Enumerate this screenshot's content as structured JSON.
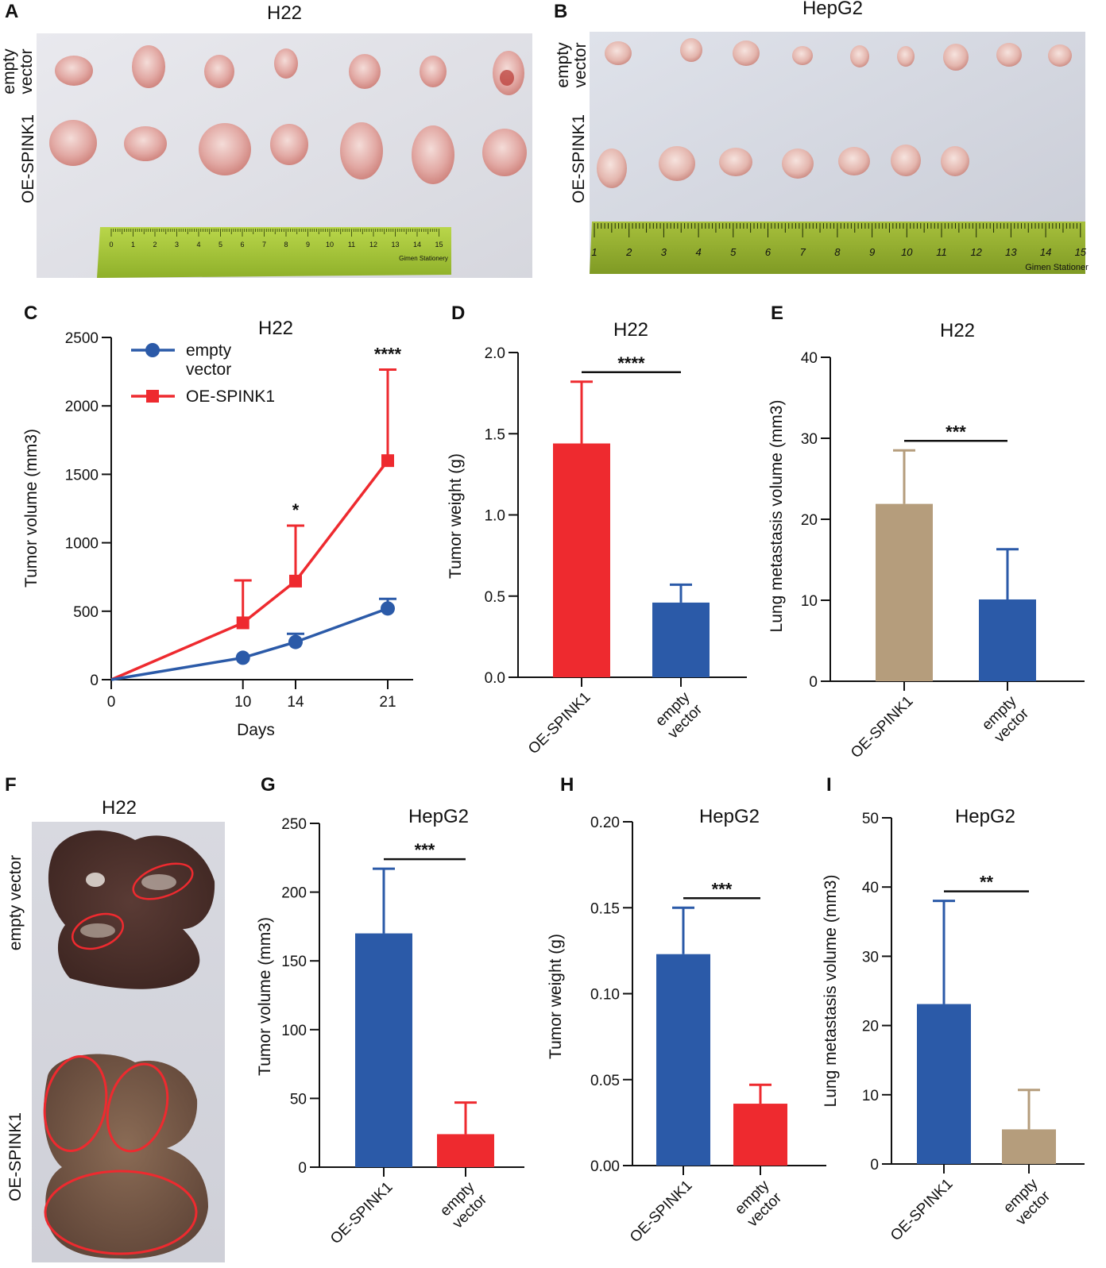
{
  "figure": {
    "panels": {
      "A": {
        "letter": "A",
        "title": "H22",
        "row_labels": [
          "empty\nvector",
          "OE-SPINK1"
        ],
        "ruler_text": "Gimen Stationery",
        "ruler_numbers": [
          "0",
          "1",
          "2",
          "3",
          "4",
          "5",
          "6",
          "7",
          "8",
          "9",
          "10",
          "11",
          "12",
          "13",
          "14",
          "15"
        ]
      },
      "B": {
        "letter": "B",
        "title": "HepG2",
        "row_labels": [
          "empty\nvector",
          "OE-SPINK1"
        ],
        "ruler_text": "Gimen Stationer",
        "ruler_numbers": [
          "1",
          "2",
          "3",
          "4",
          "5",
          "6",
          "7",
          "8",
          "9",
          "10",
          "11",
          "12",
          "13",
          "14",
          "15"
        ]
      },
      "F": {
        "letter": "F",
        "title": "H22",
        "row_labels": [
          "empty vector",
          "OE-SPINK1"
        ]
      }
    }
  },
  "colors": {
    "red": "#ee2a2f",
    "blue": "#2b5aa8",
    "tan": "#b59d7c",
    "dark": "#111111"
  },
  "chart_data": [
    {
      "panel": "C",
      "type": "line",
      "title": "H22",
      "xlabel": "Days",
      "ylabel": "Tumor volume (mm3)",
      "x": [
        0,
        10,
        14,
        21
      ],
      "xticks": [
        "0",
        "10",
        "14",
        "21"
      ],
      "ylim": [
        0,
        2500
      ],
      "yticks": [
        "0",
        "500",
        "1000",
        "1500",
        "2000",
        "2500"
      ],
      "series": [
        {
          "name": "empty\nvector",
          "color": "#2b5aa8",
          "marker": "circle",
          "values": [
            0,
            160,
            275,
            520
          ],
          "errors": [
            0,
            0,
            60,
            70
          ]
        },
        {
          "name": "OE-SPINK1",
          "color": "#ee2a2f",
          "marker": "square",
          "values": [
            0,
            415,
            720,
            1600
          ],
          "errors": [
            0,
            310,
            405,
            665
          ]
        }
      ],
      "annotations": [
        {
          "x": 14,
          "text": "*"
        },
        {
          "x": 21,
          "text": "****"
        }
      ],
      "legend": "top-left"
    },
    {
      "panel": "D",
      "type": "bar",
      "title": "H22",
      "ylabel": "Tumor weight (g)",
      "categories": [
        "OE-SPINK1",
        "empty\nvector"
      ],
      "values": [
        1.44,
        0.46
      ],
      "errors": [
        0.38,
        0.11
      ],
      "bar_colors": [
        "#ee2a2f",
        "#2b5aa8"
      ],
      "ylim": [
        0,
        2.0
      ],
      "yticks": [
        "0.0",
        "0.5",
        "1.0",
        "1.5",
        "2.0"
      ],
      "significance": "****"
    },
    {
      "panel": "E",
      "type": "bar",
      "title": "H22",
      "ylabel": "Lung metastasis volume (mm3)",
      "categories": [
        "OE-SPINK1",
        "empty\nvector"
      ],
      "values": [
        21.9,
        10.1
      ],
      "errors": [
        6.6,
        6.2
      ],
      "bar_colors": [
        "#b59d7c",
        "#2b5aa8"
      ],
      "ylim": [
        0,
        40
      ],
      "yticks": [
        "0",
        "10",
        "20",
        "30",
        "40"
      ],
      "significance": "***"
    },
    {
      "panel": "G",
      "type": "bar",
      "title": "HepG2",
      "ylabel": "Tumor volume (mm3)",
      "categories": [
        "OE-SPINK1",
        "empty\nvector"
      ],
      "values": [
        170,
        24
      ],
      "errors": [
        47,
        23
      ],
      "bar_colors": [
        "#2b5aa8",
        "#ee2a2f"
      ],
      "ylim": [
        0,
        250
      ],
      "yticks": [
        "0",
        "50",
        "100",
        "150",
        "200",
        "250"
      ],
      "significance": "***"
    },
    {
      "panel": "H",
      "type": "bar",
      "title": "HepG2",
      "ylabel": "Tumor weight (g)",
      "categories": [
        "OE-SPINK1",
        "empty\nvector"
      ],
      "values": [
        0.123,
        0.036
      ],
      "errors": [
        0.027,
        0.011
      ],
      "bar_colors": [
        "#2b5aa8",
        "#ee2a2f"
      ],
      "ylim": [
        0,
        0.2
      ],
      "yticks": [
        "0.00",
        "0.05",
        "0.10",
        "0.15",
        "0.20"
      ],
      "significance": "***"
    },
    {
      "panel": "I",
      "type": "bar",
      "title": "HepG2",
      "ylabel": "Lung metastasis volume (mm3)",
      "categories": [
        "OE-SPINK1",
        "empty\nvector"
      ],
      "values": [
        23.1,
        5.0
      ],
      "errors": [
        14.9,
        5.7
      ],
      "bar_colors": [
        "#2b5aa8",
        "#b59d7c"
      ],
      "ylim": [
        0,
        50
      ],
      "yticks": [
        "0",
        "10",
        "20",
        "30",
        "40",
        "50"
      ],
      "significance": "**"
    }
  ]
}
